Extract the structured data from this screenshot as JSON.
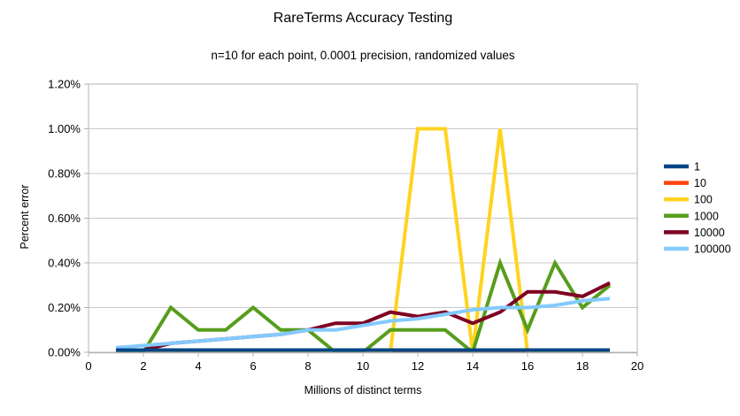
{
  "chart": {
    "title": "RareTerms Accuracy Testing",
    "subtitle": "n=10 for each point, 0.0001 precision, randomized values",
    "xlabel": "Millions of distinct terms",
    "ylabel": "Percent error"
  },
  "chart_data": {
    "type": "line",
    "title": "RareTerms Accuracy Testing",
    "subtitle": "n=10 for each point, 0.0001 precision, randomized values",
    "xlabel": "Millions of distinct terms",
    "ylabel": "Percent error",
    "xlim": [
      0,
      20
    ],
    "ylim_percent": [
      0.0,
      1.2
    ],
    "x_tick_labels": [
      "0",
      "2",
      "4",
      "6",
      "8",
      "10",
      "12",
      "14",
      "16",
      "18",
      "20"
    ],
    "y_tick_labels": [
      "0.00%",
      "0.20%",
      "0.40%",
      "0.60%",
      "0.80%",
      "1.00%",
      "1.20%"
    ],
    "grid": true,
    "legend_position": "right",
    "x": [
      1,
      2,
      3,
      4,
      5,
      6,
      7,
      8,
      9,
      10,
      11,
      12,
      13,
      14,
      15,
      16,
      17,
      18,
      19
    ],
    "series": [
      {
        "name": "1",
        "color": "#004586",
        "values_percent": [
          0.01,
          0.01,
          0.01,
          0.01,
          0.01,
          0.01,
          0.01,
          0.01,
          0.01,
          0.01,
          0.01,
          0.01,
          0.01,
          0.01,
          0.01,
          0.01,
          0.01,
          0.01,
          0.01
        ]
      },
      {
        "name": "10",
        "color": "#ff420e",
        "values_percent": [
          0,
          0,
          0,
          0,
          0,
          0,
          0,
          0,
          0,
          0,
          0,
          0,
          0,
          0,
          0,
          0,
          0,
          0,
          0
        ]
      },
      {
        "name": "100",
        "color": "#ffd320",
        "values_percent": [
          0,
          0,
          0,
          0,
          0,
          0,
          0,
          0,
          0,
          0,
          0,
          1.0,
          1.0,
          0,
          1.0,
          0,
          0,
          0,
          0
        ]
      },
      {
        "name": "1000",
        "color": "#579d1c",
        "values_percent": [
          0.01,
          0,
          0.2,
          0.1,
          0.1,
          0.2,
          0.1,
          0.1,
          0,
          0,
          0.1,
          0.1,
          0.1,
          0,
          0.4,
          0.1,
          0.4,
          0.2,
          0.3
        ]
      },
      {
        "name": "10000",
        "color": "#7e0021",
        "values_percent": [
          0.01,
          0.01,
          0.04,
          0.05,
          0.06,
          0.07,
          0.08,
          0.1,
          0.13,
          0.13,
          0.18,
          0.16,
          0.18,
          0.13,
          0.18,
          0.27,
          0.27,
          0.25,
          0.31
        ]
      },
      {
        "name": "100000",
        "color": "#83caff",
        "values_percent": [
          0.02,
          0.03,
          0.04,
          0.05,
          0.06,
          0.07,
          0.08,
          0.1,
          0.1,
          0.12,
          0.14,
          0.15,
          0.17,
          0.19,
          0.2,
          0.2,
          0.21,
          0.23,
          0.24
        ]
      }
    ],
    "draw_order": [
      "10",
      "100",
      "1000",
      "10000",
      "100000",
      "1"
    ],
    "colors": {
      "grid_line": "#c8c8c8",
      "plot_border": "#b3b3b3",
      "axis_text": "#000000",
      "background": "#ffffff"
    }
  }
}
